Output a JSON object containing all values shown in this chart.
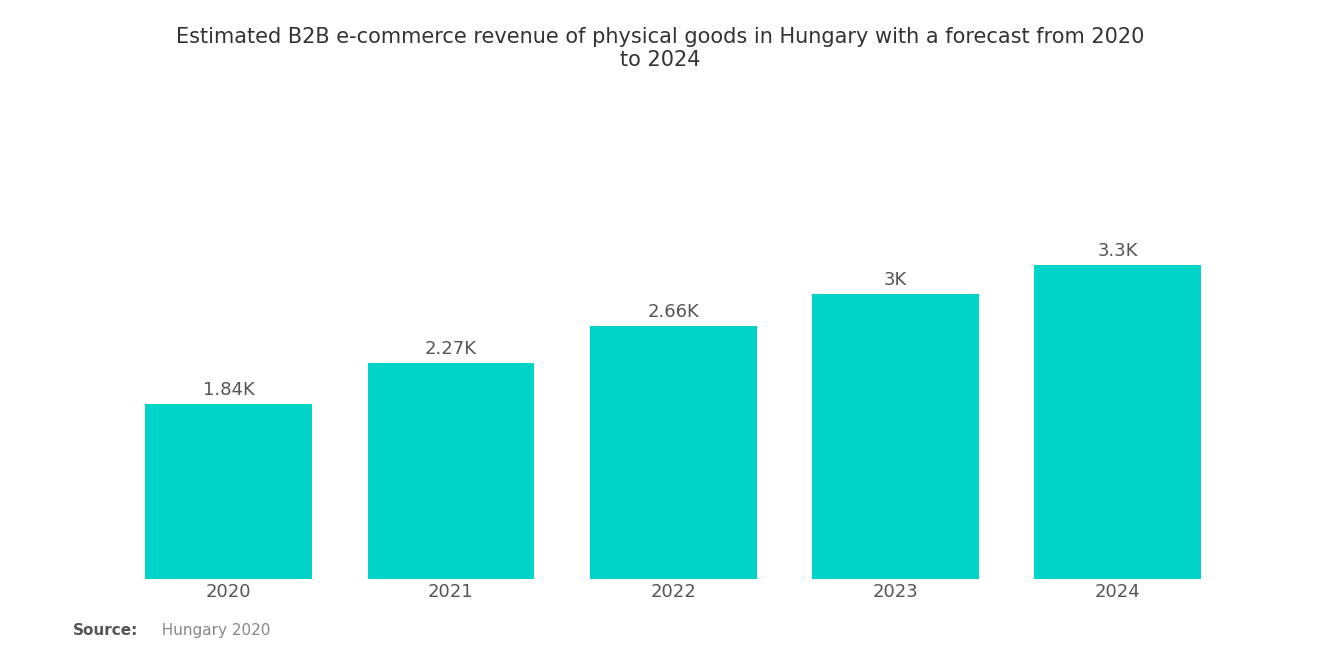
{
  "title": "Estimated B2B e-commerce revenue of physical goods in Hungary with a forecast from 2020\nto 2024",
  "categories": [
    "2020",
    "2021",
    "2022",
    "2023",
    "2024"
  ],
  "values": [
    1.84,
    2.27,
    2.66,
    3.0,
    3.3
  ],
  "labels": [
    "1.84K",
    "2.27K",
    "2.66K",
    "3K",
    "3.3K"
  ],
  "bar_color": "#00D4C8",
  "background_color": "#ffffff",
  "title_fontsize": 15,
  "label_fontsize": 13,
  "tick_fontsize": 13,
  "source_bold": "Source:",
  "source_text": "  Hungary 2020",
  "ylim": [
    0,
    4.2
  ],
  "bar_width": 0.75,
  "title_color": "#333333",
  "tick_color": "#555555",
  "label_color": "#555555",
  "source_bold_color": "#555555",
  "source_text_color": "#888888"
}
